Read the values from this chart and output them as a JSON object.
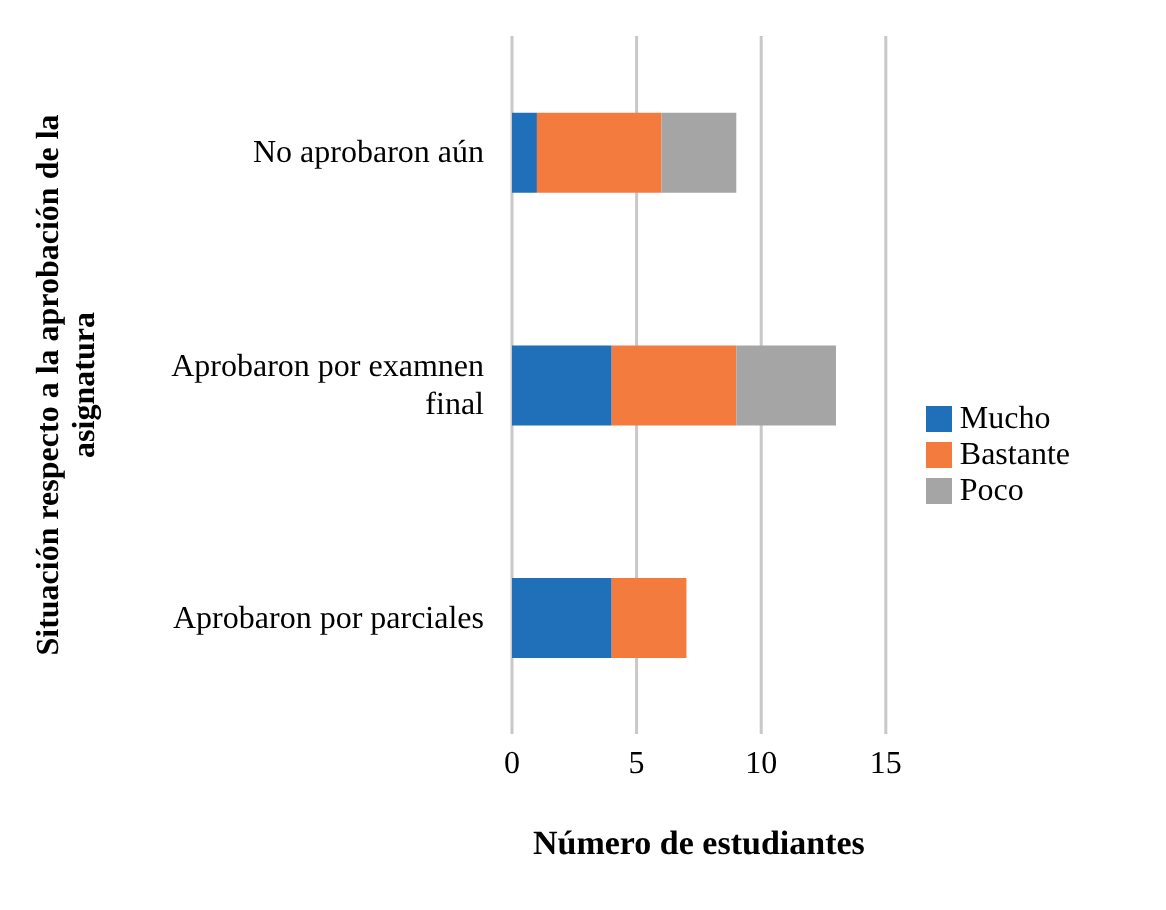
{
  "chart_data": {
    "type": "bar",
    "orientation": "horizontal",
    "stacked": true,
    "categories": [
      "No aprobaron aún",
      "Aprobaron por examnen final",
      "Aprobaron por parciales"
    ],
    "series": [
      {
        "name": "Mucho",
        "color": "#1f6fb9",
        "values": [
          1,
          4,
          4
        ]
      },
      {
        "name": "Bastante",
        "color": "#f47b3e",
        "values": [
          5,
          5,
          3
        ]
      },
      {
        "name": "Poco",
        "color": "#a5a5a5",
        "values": [
          3,
          4,
          null
        ]
      }
    ],
    "xlim": [
      0,
      15
    ],
    "xticks": [
      0,
      5,
      10,
      15
    ],
    "xlabel": "Número de estudiantes",
    "ylabel": "Situación respecto a la aprobación de la asignatura",
    "grid": "x",
    "legend": "right"
  }
}
